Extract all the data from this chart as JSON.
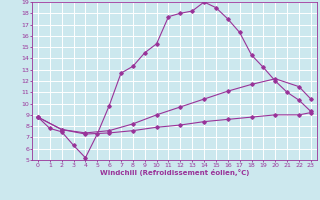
{
  "xlabel": "Windchill (Refroidissement éolien,°C)",
  "xlim": [
    -0.5,
    23.5
  ],
  "ylim": [
    5,
    19
  ],
  "xticks": [
    0,
    1,
    2,
    3,
    4,
    5,
    6,
    7,
    8,
    9,
    10,
    11,
    12,
    13,
    14,
    15,
    16,
    17,
    18,
    19,
    20,
    21,
    22,
    23
  ],
  "yticks": [
    5,
    6,
    7,
    8,
    9,
    10,
    11,
    12,
    13,
    14,
    15,
    16,
    17,
    18,
    19
  ],
  "line_color": "#993399",
  "bg_color": "#cce8ee",
  "grid_color": "#ffffff",
  "line1_x": [
    0,
    1,
    2,
    3,
    4,
    5,
    6,
    7,
    8,
    9,
    10,
    11,
    12,
    13,
    14,
    15,
    16,
    17,
    18,
    19,
    20,
    21,
    22,
    23
  ],
  "line1_y": [
    8.8,
    7.8,
    7.5,
    6.3,
    5.2,
    7.3,
    9.8,
    12.7,
    13.3,
    14.5,
    15.3,
    17.7,
    18.0,
    18.2,
    19.0,
    18.5,
    17.5,
    16.3,
    14.3,
    13.2,
    12.0,
    11.0,
    10.3,
    9.3
  ],
  "line2_x": [
    0,
    2,
    4,
    6,
    8,
    10,
    12,
    14,
    16,
    18,
    20,
    22,
    23
  ],
  "line2_y": [
    8.8,
    7.7,
    7.4,
    7.6,
    8.2,
    9.0,
    9.7,
    10.4,
    11.1,
    11.7,
    12.2,
    11.5,
    10.4
  ],
  "line3_x": [
    0,
    2,
    4,
    6,
    8,
    10,
    12,
    14,
    16,
    18,
    20,
    22,
    23
  ],
  "line3_y": [
    8.8,
    7.7,
    7.3,
    7.4,
    7.6,
    7.9,
    8.1,
    8.4,
    8.6,
    8.8,
    9.0,
    9.0,
    9.2
  ]
}
